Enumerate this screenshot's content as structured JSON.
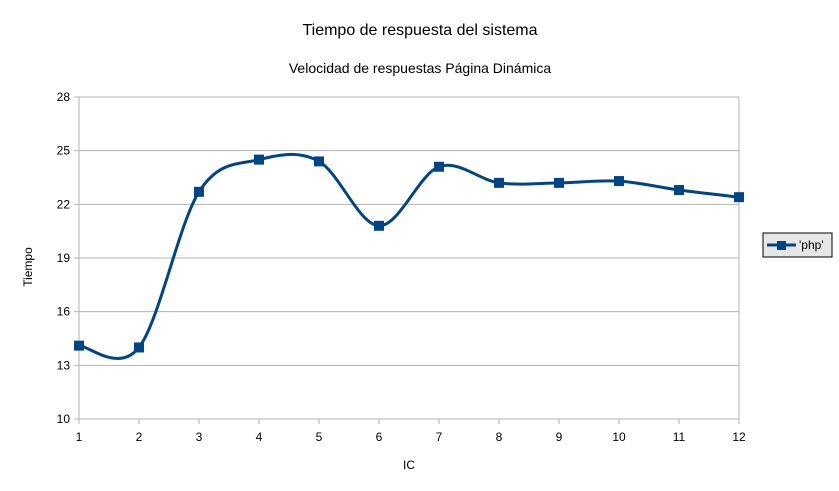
{
  "chart_data": {
    "type": "line",
    "title": "Tiempo de respuesta del sistema",
    "subtitle": "Velocidad de respuestas Página Dinámica",
    "xlabel": "IC",
    "ylabel": "Tiempo",
    "x": [
      1,
      2,
      3,
      4,
      5,
      6,
      7,
      8,
      9,
      10,
      11,
      12
    ],
    "xlim": [
      1,
      12
    ],
    "ylim": [
      10,
      28
    ],
    "yticks": [
      10,
      13,
      16,
      19,
      22,
      25,
      28
    ],
    "grid": true,
    "smooth": true,
    "legend_position": "right",
    "series": [
      {
        "name": "'php'",
        "color": "#004586",
        "marker": "square",
        "values": [
          14.1,
          14.0,
          22.7,
          24.5,
          24.4,
          20.8,
          24.1,
          23.2,
          23.2,
          23.3,
          22.8,
          22.4
        ]
      }
    ]
  }
}
